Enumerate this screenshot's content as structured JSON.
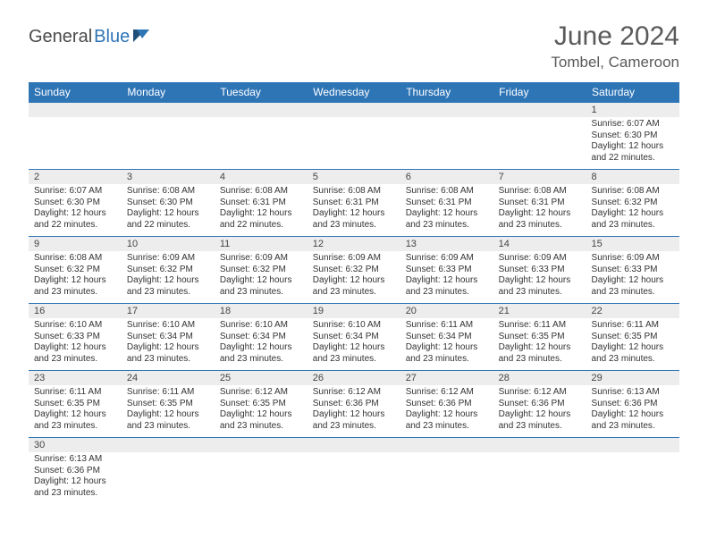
{
  "brand": {
    "part1": "General",
    "part2": "Blue"
  },
  "title": "June 2024",
  "location": "Tombel, Cameroon",
  "colors": {
    "header_bg": "#2e75b6",
    "header_text": "#ffffff",
    "daynum_bg": "#ededed",
    "border": "#2e75b6",
    "body_text": "#333333",
    "title_text": "#5a5a5a",
    "page_bg": "#ffffff"
  },
  "typography": {
    "title_fontsize": 30,
    "location_fontsize": 17,
    "header_fontsize": 12,
    "daynum_fontsize": 11,
    "cell_fontsize": 10
  },
  "week_headers": [
    "Sunday",
    "Monday",
    "Tuesday",
    "Wednesday",
    "Thursday",
    "Friday",
    "Saturday"
  ],
  "weeks": [
    [
      null,
      null,
      null,
      null,
      null,
      null,
      {
        "n": "1",
        "sr": "Sunrise: 6:07 AM",
        "ss": "Sunset: 6:30 PM",
        "dl": "Daylight: 12 hours and 22 minutes."
      }
    ],
    [
      {
        "n": "2",
        "sr": "Sunrise: 6:07 AM",
        "ss": "Sunset: 6:30 PM",
        "dl": "Daylight: 12 hours and 22 minutes."
      },
      {
        "n": "3",
        "sr": "Sunrise: 6:08 AM",
        "ss": "Sunset: 6:30 PM",
        "dl": "Daylight: 12 hours and 22 minutes."
      },
      {
        "n": "4",
        "sr": "Sunrise: 6:08 AM",
        "ss": "Sunset: 6:31 PM",
        "dl": "Daylight: 12 hours and 22 minutes."
      },
      {
        "n": "5",
        "sr": "Sunrise: 6:08 AM",
        "ss": "Sunset: 6:31 PM",
        "dl": "Daylight: 12 hours and 23 minutes."
      },
      {
        "n": "6",
        "sr": "Sunrise: 6:08 AM",
        "ss": "Sunset: 6:31 PM",
        "dl": "Daylight: 12 hours and 23 minutes."
      },
      {
        "n": "7",
        "sr": "Sunrise: 6:08 AM",
        "ss": "Sunset: 6:31 PM",
        "dl": "Daylight: 12 hours and 23 minutes."
      },
      {
        "n": "8",
        "sr": "Sunrise: 6:08 AM",
        "ss": "Sunset: 6:32 PM",
        "dl": "Daylight: 12 hours and 23 minutes."
      }
    ],
    [
      {
        "n": "9",
        "sr": "Sunrise: 6:08 AM",
        "ss": "Sunset: 6:32 PM",
        "dl": "Daylight: 12 hours and 23 minutes."
      },
      {
        "n": "10",
        "sr": "Sunrise: 6:09 AM",
        "ss": "Sunset: 6:32 PM",
        "dl": "Daylight: 12 hours and 23 minutes."
      },
      {
        "n": "11",
        "sr": "Sunrise: 6:09 AM",
        "ss": "Sunset: 6:32 PM",
        "dl": "Daylight: 12 hours and 23 minutes."
      },
      {
        "n": "12",
        "sr": "Sunrise: 6:09 AM",
        "ss": "Sunset: 6:32 PM",
        "dl": "Daylight: 12 hours and 23 minutes."
      },
      {
        "n": "13",
        "sr": "Sunrise: 6:09 AM",
        "ss": "Sunset: 6:33 PM",
        "dl": "Daylight: 12 hours and 23 minutes."
      },
      {
        "n": "14",
        "sr": "Sunrise: 6:09 AM",
        "ss": "Sunset: 6:33 PM",
        "dl": "Daylight: 12 hours and 23 minutes."
      },
      {
        "n": "15",
        "sr": "Sunrise: 6:09 AM",
        "ss": "Sunset: 6:33 PM",
        "dl": "Daylight: 12 hours and 23 minutes."
      }
    ],
    [
      {
        "n": "16",
        "sr": "Sunrise: 6:10 AM",
        "ss": "Sunset: 6:33 PM",
        "dl": "Daylight: 12 hours and 23 minutes."
      },
      {
        "n": "17",
        "sr": "Sunrise: 6:10 AM",
        "ss": "Sunset: 6:34 PM",
        "dl": "Daylight: 12 hours and 23 minutes."
      },
      {
        "n": "18",
        "sr": "Sunrise: 6:10 AM",
        "ss": "Sunset: 6:34 PM",
        "dl": "Daylight: 12 hours and 23 minutes."
      },
      {
        "n": "19",
        "sr": "Sunrise: 6:10 AM",
        "ss": "Sunset: 6:34 PM",
        "dl": "Daylight: 12 hours and 23 minutes."
      },
      {
        "n": "20",
        "sr": "Sunrise: 6:11 AM",
        "ss": "Sunset: 6:34 PM",
        "dl": "Daylight: 12 hours and 23 minutes."
      },
      {
        "n": "21",
        "sr": "Sunrise: 6:11 AM",
        "ss": "Sunset: 6:35 PM",
        "dl": "Daylight: 12 hours and 23 minutes."
      },
      {
        "n": "22",
        "sr": "Sunrise: 6:11 AM",
        "ss": "Sunset: 6:35 PM",
        "dl": "Daylight: 12 hours and 23 minutes."
      }
    ],
    [
      {
        "n": "23",
        "sr": "Sunrise: 6:11 AM",
        "ss": "Sunset: 6:35 PM",
        "dl": "Daylight: 12 hours and 23 minutes."
      },
      {
        "n": "24",
        "sr": "Sunrise: 6:11 AM",
        "ss": "Sunset: 6:35 PM",
        "dl": "Daylight: 12 hours and 23 minutes."
      },
      {
        "n": "25",
        "sr": "Sunrise: 6:12 AM",
        "ss": "Sunset: 6:35 PM",
        "dl": "Daylight: 12 hours and 23 minutes."
      },
      {
        "n": "26",
        "sr": "Sunrise: 6:12 AM",
        "ss": "Sunset: 6:36 PM",
        "dl": "Daylight: 12 hours and 23 minutes."
      },
      {
        "n": "27",
        "sr": "Sunrise: 6:12 AM",
        "ss": "Sunset: 6:36 PM",
        "dl": "Daylight: 12 hours and 23 minutes."
      },
      {
        "n": "28",
        "sr": "Sunrise: 6:12 AM",
        "ss": "Sunset: 6:36 PM",
        "dl": "Daylight: 12 hours and 23 minutes."
      },
      {
        "n": "29",
        "sr": "Sunrise: 6:13 AM",
        "ss": "Sunset: 6:36 PM",
        "dl": "Daylight: 12 hours and 23 minutes."
      }
    ],
    [
      {
        "n": "30",
        "sr": "Sunrise: 6:13 AM",
        "ss": "Sunset: 6:36 PM",
        "dl": "Daylight: 12 hours and 23 minutes."
      },
      null,
      null,
      null,
      null,
      null,
      null
    ]
  ]
}
